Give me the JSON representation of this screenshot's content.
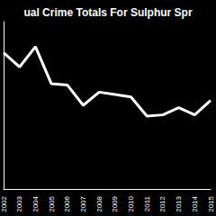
{
  "chart_data": {
    "type": "line",
    "title": "ual Crime Totals For Sulphur Spr",
    "categories": [
      "2002",
      "2003",
      "2004",
      "2005",
      "2006",
      "2007",
      "2008",
      "2009",
      "2010",
      "2011",
      "2012",
      "2013",
      "2014",
      "2015"
    ],
    "values": [
      1140,
      1020,
      1190,
      880,
      870,
      700,
      810,
      790,
      770,
      610,
      620,
      680,
      620,
      740
    ],
    "color": "#ffffff",
    "ylim": [
      0,
      1400
    ],
    "grid": false,
    "tick_labels": "x"
  }
}
